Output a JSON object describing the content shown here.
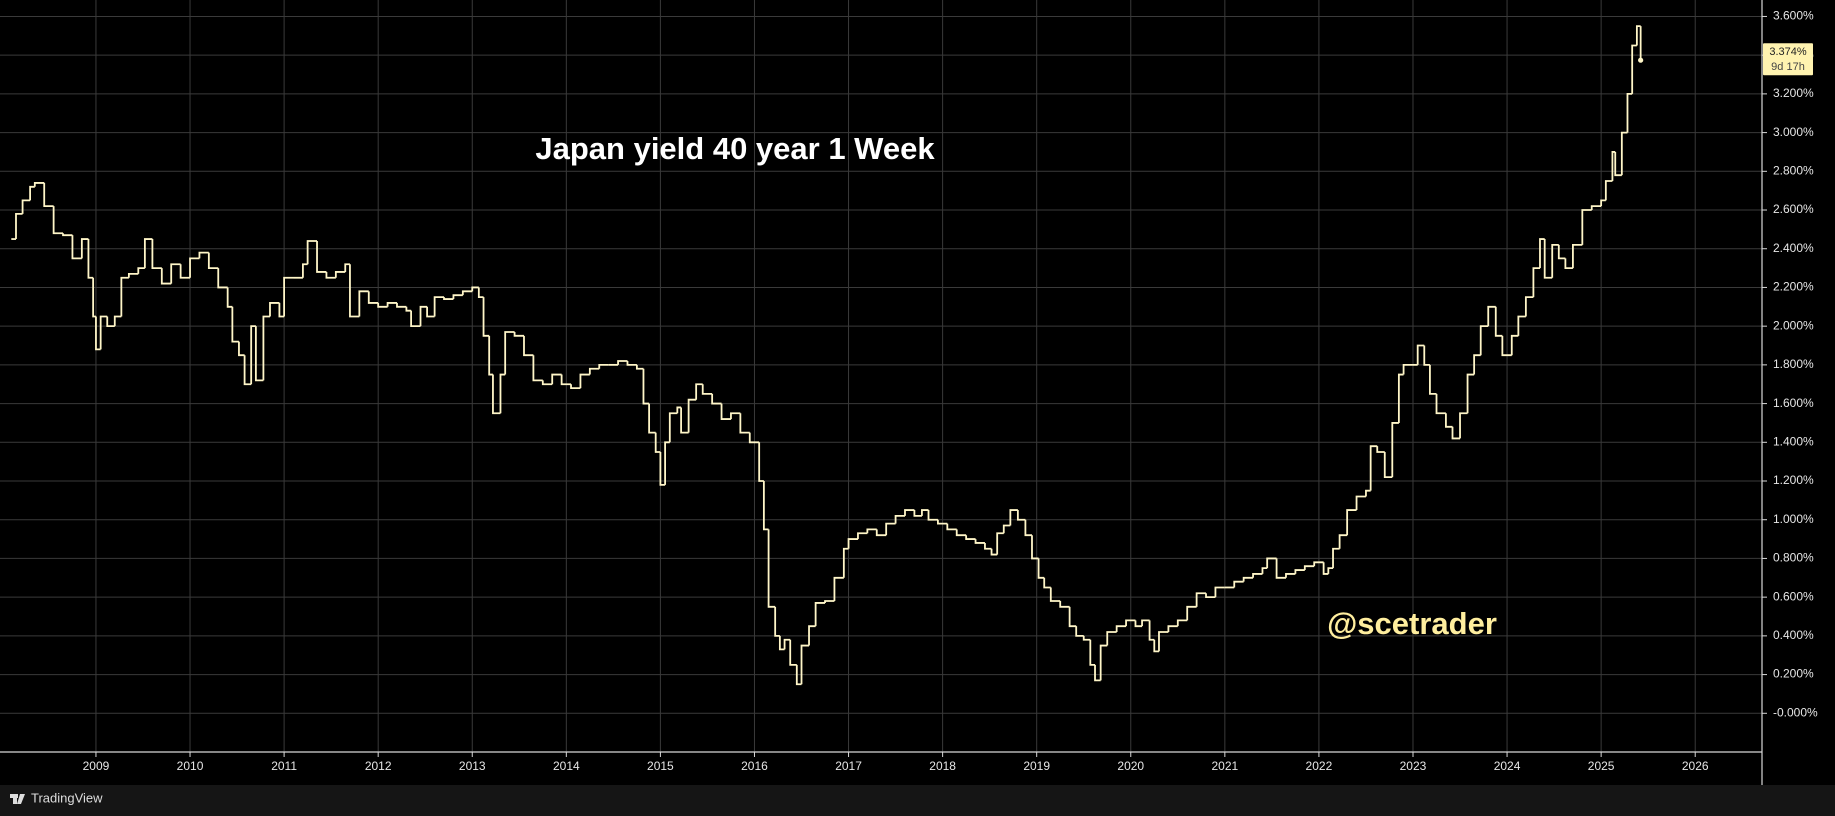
{
  "chart_data": {
    "type": "line",
    "step": true,
    "title": "Japan yield 40 year 1 Week",
    "watermark": "@scetrader",
    "last_label": "3.374%",
    "countdown": "9d 17h",
    "color": "#fff6c8",
    "grid": true,
    "xlim": [
      2007.98,
      2026.71
    ],
    "ylim": [
      -0.2,
      3.685
    ],
    "xticks": [
      2009,
      2010,
      2011,
      2012,
      2013,
      2014,
      2015,
      2016,
      2017,
      2018,
      2019,
      2020,
      2021,
      2022,
      2023,
      2024,
      2025,
      2026
    ],
    "yticks": [
      {
        "value": 0,
        "label": "-0.000%"
      },
      {
        "value": 0.2,
        "label": "0.200%"
      },
      {
        "value": 0.4,
        "label": "0.400%"
      },
      {
        "value": 0.6,
        "label": "0.600%"
      },
      {
        "value": 0.8,
        "label": "0.800%"
      },
      {
        "value": 1.0,
        "label": "1.000%"
      },
      {
        "value": 1.2,
        "label": "1.200%"
      },
      {
        "value": 1.4,
        "label": "1.400%"
      },
      {
        "value": 1.6,
        "label": "1.600%"
      },
      {
        "value": 1.8,
        "label": "1.800%"
      },
      {
        "value": 2.0,
        "label": "2.000%"
      },
      {
        "value": 2.2,
        "label": "2.200%"
      },
      {
        "value": 2.4,
        "label": "2.400%"
      },
      {
        "value": 2.6,
        "label": "2.600%"
      },
      {
        "value": 2.8,
        "label": "2.800%"
      },
      {
        "value": 3.0,
        "label": "3.000%"
      },
      {
        "value": 3.2,
        "label": "3.200%"
      },
      {
        "value": 3.4,
        "label": "3.400%"
      },
      {
        "value": 3.6,
        "label": "3.600%"
      }
    ],
    "x": [
      2008.1,
      2008.15,
      2008.22,
      2008.3,
      2008.35,
      2008.45,
      2008.55,
      2008.65,
      2008.75,
      2008.85,
      2008.92,
      2008.97,
      2009.0,
      2009.05,
      2009.12,
      2009.2,
      2009.27,
      2009.35,
      2009.45,
      2009.52,
      2009.6,
      2009.7,
      2009.8,
      2009.9,
      2010.0,
      2010.1,
      2010.2,
      2010.3,
      2010.4,
      2010.45,
      2010.52,
      2010.58,
      2010.65,
      2010.7,
      2010.78,
      2010.85,
      2010.95,
      2011.0,
      2011.1,
      2011.2,
      2011.25,
      2011.35,
      2011.45,
      2011.55,
      2011.65,
      2011.7,
      2011.8,
      2011.9,
      2012.0,
      2012.1,
      2012.2,
      2012.3,
      2012.35,
      2012.45,
      2012.52,
      2012.6,
      2012.7,
      2012.8,
      2012.9,
      2013.0,
      2013.07,
      2013.12,
      2013.18,
      2013.22,
      2013.3,
      2013.35,
      2013.45,
      2013.55,
      2013.65,
      2013.75,
      2013.85,
      2013.95,
      2014.05,
      2014.15,
      2014.25,
      2014.35,
      2014.45,
      2014.55,
      2014.65,
      2014.75,
      2014.82,
      2014.88,
      2014.95,
      2015.0,
      2015.05,
      2015.1,
      2015.18,
      2015.22,
      2015.3,
      2015.38,
      2015.45,
      2015.55,
      2015.65,
      2015.75,
      2015.85,
      2015.95,
      2016.05,
      2016.1,
      2016.15,
      2016.22,
      2016.27,
      2016.32,
      2016.38,
      2016.45,
      2016.5,
      2016.58,
      2016.65,
      2016.75,
      2016.85,
      2016.95,
      2017.0,
      2017.1,
      2017.2,
      2017.3,
      2017.4,
      2017.5,
      2017.6,
      2017.7,
      2017.78,
      2017.85,
      2017.95,
      2018.05,
      2018.15,
      2018.25,
      2018.35,
      2018.45,
      2018.52,
      2018.58,
      2018.65,
      2018.72,
      2018.8,
      2018.88,
      2018.95,
      2019.02,
      2019.08,
      2019.15,
      2019.25,
      2019.35,
      2019.42,
      2019.5,
      2019.57,
      2019.62,
      2019.68,
      2019.75,
      2019.85,
      2019.95,
      2020.05,
      2020.12,
      2020.2,
      2020.25,
      2020.3,
      2020.4,
      2020.5,
      2020.6,
      2020.7,
      2020.8,
      2020.9,
      2021.0,
      2021.1,
      2021.2,
      2021.3,
      2021.4,
      2021.45,
      2021.55,
      2021.65,
      2021.75,
      2021.85,
      2021.95,
      2022.05,
      2022.1,
      2022.15,
      2022.22,
      2022.3,
      2022.4,
      2022.5,
      2022.55,
      2022.62,
      2022.7,
      2022.78,
      2022.85,
      2022.9,
      2023.0,
      2023.05,
      2023.12,
      2023.18,
      2023.25,
      2023.35,
      2023.42,
      2023.5,
      2023.58,
      2023.65,
      2023.72,
      2023.8,
      2023.88,
      2023.95,
      2024.05,
      2024.12,
      2024.2,
      2024.28,
      2024.35,
      2024.4,
      2024.48,
      2024.55,
      2024.62,
      2024.7,
      2024.8,
      2024.9,
      2025.0,
      2025.05,
      2025.12,
      2025.15,
      2025.22,
      2025.28,
      2025.33,
      2025.38,
      2025.42
    ],
    "values": [
      2.45,
      2.58,
      2.65,
      2.72,
      2.74,
      2.62,
      2.48,
      2.47,
      2.35,
      2.45,
      2.25,
      2.05,
      1.88,
      2.05,
      2.0,
      2.05,
      2.25,
      2.27,
      2.3,
      2.45,
      2.3,
      2.22,
      2.32,
      2.25,
      2.35,
      2.38,
      2.3,
      2.2,
      2.1,
      1.92,
      1.85,
      1.7,
      2.0,
      1.72,
      2.05,
      2.12,
      2.05,
      2.25,
      2.25,
      2.32,
      2.44,
      2.28,
      2.25,
      2.28,
      2.32,
      2.05,
      2.18,
      2.12,
      2.1,
      2.12,
      2.1,
      2.08,
      2.0,
      2.1,
      2.05,
      2.15,
      2.14,
      2.16,
      2.18,
      2.2,
      2.15,
      1.95,
      1.75,
      1.55,
      1.75,
      1.97,
      1.95,
      1.85,
      1.72,
      1.7,
      1.75,
      1.7,
      1.68,
      1.75,
      1.78,
      1.8,
      1.8,
      1.82,
      1.8,
      1.78,
      1.6,
      1.45,
      1.35,
      1.18,
      1.4,
      1.55,
      1.58,
      1.45,
      1.62,
      1.7,
      1.65,
      1.6,
      1.52,
      1.55,
      1.45,
      1.4,
      1.2,
      0.95,
      0.55,
      0.4,
      0.33,
      0.38,
      0.25,
      0.15,
      0.35,
      0.45,
      0.57,
      0.58,
      0.7,
      0.85,
      0.9,
      0.93,
      0.95,
      0.92,
      0.98,
      1.02,
      1.05,
      1.02,
      1.05,
      1.0,
      0.98,
      0.95,
      0.92,
      0.9,
      0.88,
      0.85,
      0.82,
      0.93,
      0.97,
      1.05,
      1.0,
      0.92,
      0.8,
      0.7,
      0.65,
      0.58,
      0.55,
      0.45,
      0.4,
      0.38,
      0.25,
      0.17,
      0.35,
      0.42,
      0.45,
      0.48,
      0.45,
      0.48,
      0.38,
      0.32,
      0.42,
      0.45,
      0.48,
      0.55,
      0.62,
      0.6,
      0.65,
      0.65,
      0.68,
      0.7,
      0.72,
      0.75,
      0.8,
      0.7,
      0.72,
      0.74,
      0.76,
      0.78,
      0.72,
      0.75,
      0.85,
      0.92,
      1.05,
      1.12,
      1.15,
      1.38,
      1.35,
      1.22,
      1.5,
      1.75,
      1.8,
      1.8,
      1.9,
      1.8,
      1.65,
      1.55,
      1.48,
      1.42,
      1.55,
      1.75,
      1.85,
      2.0,
      2.1,
      1.95,
      1.85,
      1.95,
      2.05,
      2.15,
      2.3,
      2.45,
      2.25,
      2.42,
      2.35,
      2.3,
      2.42,
      2.6,
      2.62,
      2.65,
      2.75,
      2.9,
      2.78,
      3.0,
      3.2,
      3.45,
      3.55,
      3.374
    ]
  },
  "brand": "TradingView"
}
